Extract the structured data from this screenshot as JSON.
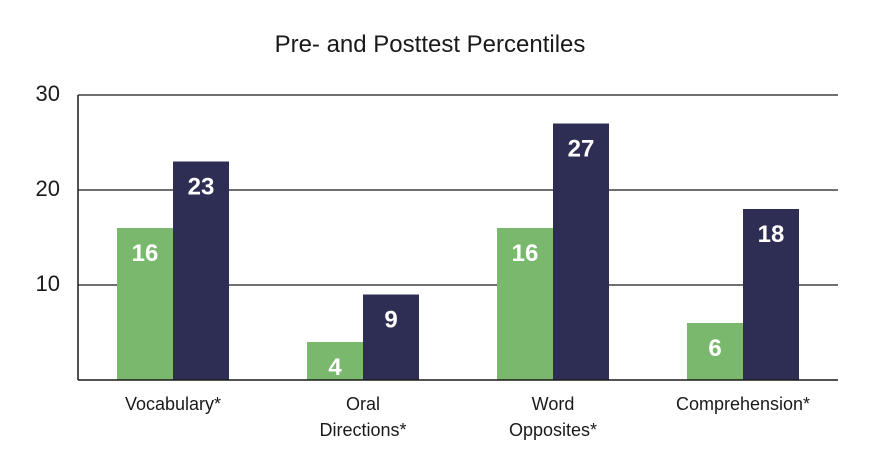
{
  "chart_data": {
    "type": "bar",
    "title": "Pre- and Posttest Percentiles",
    "categories": [
      [
        "Vocabulary*"
      ],
      [
        "Oral",
        "Directions*"
      ],
      [
        "Word",
        "Opposites*"
      ],
      [
        "Comprehension*"
      ]
    ],
    "series": [
      {
        "values": [
          16,
          4,
          16,
          6
        ],
        "color": "#7ab86e"
      },
      {
        "values": [
          23,
          9,
          27,
          18
        ],
        "color": "#2e2e55"
      }
    ],
    "value_labels": [
      [
        "16",
        "4",
        "16",
        "6"
      ],
      [
        "23",
        "9",
        "27",
        "18"
      ]
    ],
    "y_ticks": [
      10,
      20,
      30
    ],
    "ylim": [
      0,
      30
    ],
    "grid": true,
    "xlabel": "",
    "ylabel": ""
  }
}
